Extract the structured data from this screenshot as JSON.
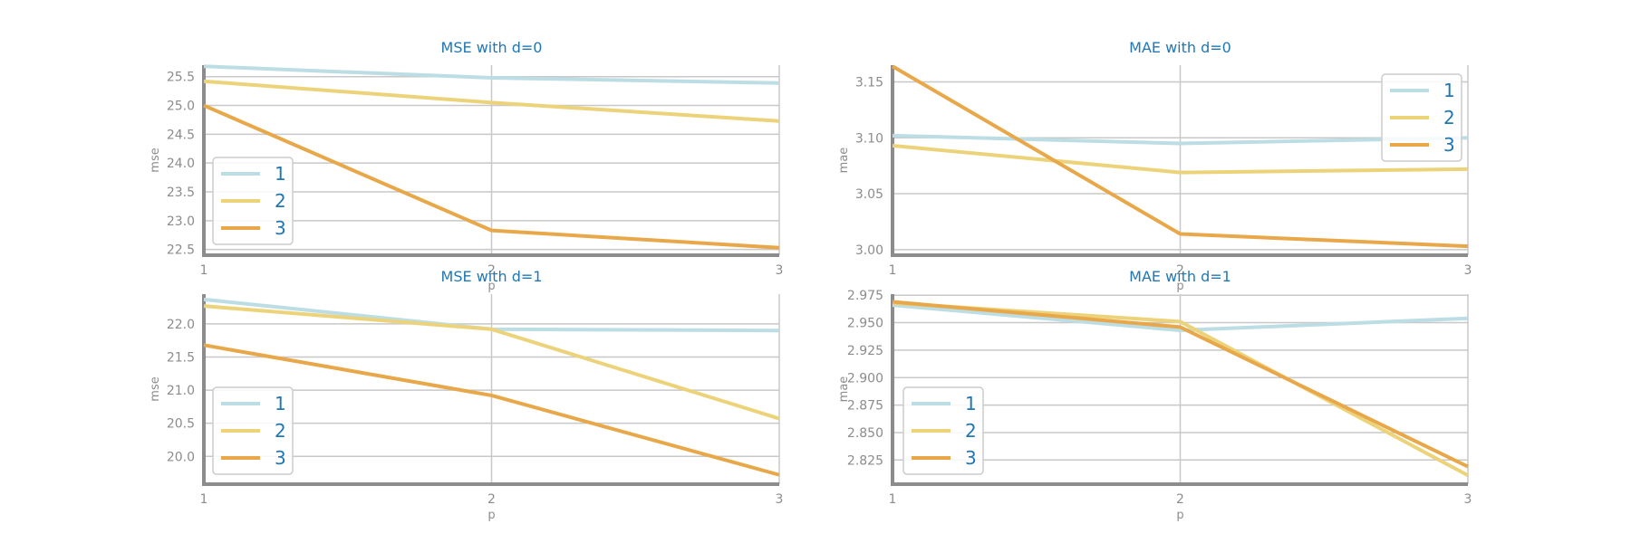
{
  "chart_data": [
    {
      "type": "line",
      "title": "MSE with d=0",
      "xlabel": "p",
      "ylabel": "mse",
      "x": [
        1,
        2,
        3
      ],
      "xlim": [
        1,
        3
      ],
      "ylim": [
        22.4,
        25.7
      ],
      "yticks": [
        22.5,
        23.0,
        23.5,
        24.0,
        24.5,
        25.0,
        25.5
      ],
      "ytick_labels": [
        "22.5",
        "23.0",
        "23.5",
        "24.0",
        "24.5",
        "25.0",
        "25.5"
      ],
      "grid": true,
      "legend": "lower-left",
      "series": [
        {
          "name": "1",
          "values": [
            25.68,
            25.48,
            25.39
          ]
        },
        {
          "name": "2",
          "values": [
            25.42,
            25.05,
            24.73
          ]
        },
        {
          "name": "3",
          "values": [
            25.0,
            22.83,
            22.53
          ]
        }
      ]
    },
    {
      "type": "line",
      "title": "MAE with d=0",
      "xlabel": "p",
      "ylabel": "mae",
      "x": [
        1,
        2,
        3
      ],
      "xlim": [
        1,
        3
      ],
      "ylim": [
        2.995,
        3.165
      ],
      "yticks": [
        3.0,
        3.05,
        3.1,
        3.15
      ],
      "ytick_labels": [
        "3.00",
        "3.05",
        "3.10",
        "3.15"
      ],
      "grid": true,
      "legend": "upper-right",
      "series": [
        {
          "name": "1",
          "values": [
            3.102,
            3.095,
            3.1
          ]
        },
        {
          "name": "2",
          "values": [
            3.093,
            3.069,
            3.072
          ]
        },
        {
          "name": "3",
          "values": [
            3.164,
            3.014,
            3.003
          ]
        }
      ]
    },
    {
      "type": "line",
      "title": "MSE with d=1",
      "xlabel": "p",
      "ylabel": "mse",
      "x": [
        1,
        2,
        3
      ],
      "xlim": [
        1,
        3
      ],
      "ylim": [
        19.58,
        22.45
      ],
      "yticks": [
        20.0,
        20.5,
        21.0,
        21.5,
        22.0
      ],
      "ytick_labels": [
        "20.0",
        "20.5",
        "21.0",
        "21.5",
        "22.0"
      ],
      "grid": true,
      "legend": "lower-left",
      "series": [
        {
          "name": "1",
          "values": [
            22.37,
            21.92,
            21.9
          ]
        },
        {
          "name": "2",
          "values": [
            22.27,
            21.92,
            20.57
          ]
        },
        {
          "name": "3",
          "values": [
            21.68,
            20.92,
            19.72
          ]
        }
      ]
    },
    {
      "type": "line",
      "title": "MAE with d=1",
      "xlabel": "p",
      "ylabel": "mae",
      "x": [
        1,
        2,
        3
      ],
      "xlim": [
        1,
        3
      ],
      "ylim": [
        2.803,
        2.976
      ],
      "yticks": [
        2.825,
        2.85,
        2.875,
        2.9,
        2.925,
        2.95,
        2.975
      ],
      "ytick_labels": [
        "2.825",
        "2.850",
        "2.875",
        "2.900",
        "2.925",
        "2.950",
        "2.975"
      ],
      "grid": true,
      "legend": "lower-left",
      "series": [
        {
          "name": "1",
          "values": [
            2.966,
            2.943,
            2.954
          ]
        },
        {
          "name": "2",
          "values": [
            2.968,
            2.951,
            2.811
          ]
        },
        {
          "name": "3",
          "values": [
            2.969,
            2.946,
            2.819
          ]
        }
      ]
    }
  ],
  "colors": {
    "series": [
      "#bcdde4",
      "#ecd37a",
      "#e8a84a"
    ],
    "title": "#1f77b4",
    "legend_text": "#1f77b4",
    "tick": "#8c8c8c",
    "grid": "#c8c8c8",
    "axis": "#8c8c8c"
  }
}
